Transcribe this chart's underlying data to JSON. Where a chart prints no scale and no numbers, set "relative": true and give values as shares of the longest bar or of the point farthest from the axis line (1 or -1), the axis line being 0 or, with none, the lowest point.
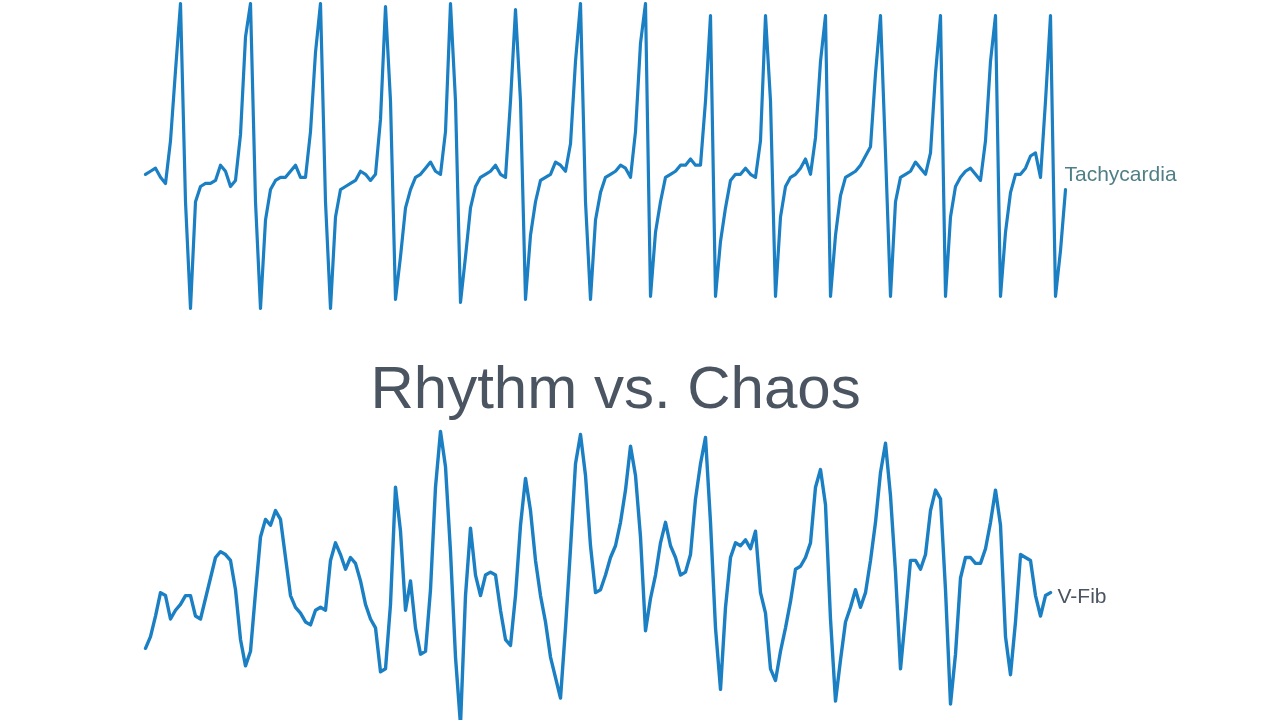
{
  "chart_data": [
    {
      "type": "line",
      "relative": true,
      "tick_labels": false,
      "line_style": "solid",
      "categories": [
        null,
        null,
        null,
        null,
        null,
        null,
        null,
        null,
        null,
        null,
        null,
        null,
        null,
        null,
        null,
        null,
        null,
        null,
        null,
        null,
        null,
        null,
        null,
        null,
        null,
        null,
        null,
        null,
        null,
        null,
        null,
        null,
        null,
        null,
        null,
        null,
        null,
        null,
        null,
        null,
        null,
        null,
        null,
        null,
        null,
        null,
        null,
        null,
        null,
        null,
        null,
        null,
        null,
        null,
        null,
        null,
        null,
        null,
        null,
        null,
        null,
        null,
        null,
        null,
        null,
        null,
        null,
        null,
        null,
        null,
        null,
        null,
        null,
        null,
        null,
        null,
        null,
        null,
        null,
        null,
        null,
        null,
        null,
        null,
        null,
        null,
        null,
        null,
        null,
        null,
        null,
        null,
        null,
        null,
        null,
        null,
        null,
        null,
        null,
        null,
        null,
        null,
        null,
        null,
        null,
        null,
        null,
        null,
        null,
        null,
        null,
        null,
        null,
        null,
        null,
        null,
        null,
        null,
        null,
        null,
        null,
        null,
        null,
        null,
        null,
        null,
        null,
        null,
        null,
        null,
        null,
        null,
        null,
        null,
        null,
        null,
        null,
        null,
        null,
        null,
        null,
        null,
        null,
        null,
        null,
        null,
        null,
        null,
        null,
        null,
        null,
        null,
        null,
        null,
        null,
        null,
        null,
        null,
        null,
        null,
        null,
        null,
        null,
        null,
        null,
        null,
        null,
        null,
        null,
        null,
        null,
        null,
        null,
        null,
        null,
        null,
        null,
        null,
        null,
        null,
        null,
        null,
        null,
        null,
        null
      ],
      "series": [
        {
          "name": "Tachycardia",
          "color": "#1b7fc4",
          "values": [
            0.44,
            0.45,
            0.46,
            0.43,
            0.41,
            0.55,
            0.78,
            1.0,
            0.35,
            0.0,
            0.35,
            0.4,
            0.41,
            0.41,
            0.42,
            0.47,
            0.45,
            0.4,
            0.42,
            0.57,
            0.89,
            1.0,
            0.35,
            0.0,
            0.29,
            0.39,
            0.42,
            0.43,
            0.43,
            0.45,
            0.47,
            0.43,
            0.43,
            0.58,
            0.84,
            1.0,
            0.35,
            0.0,
            0.3,
            0.39,
            0.4,
            0.41,
            0.42,
            0.45,
            0.44,
            0.42,
            0.44,
            0.62,
            0.99,
            0.68,
            0.03,
            0.17,
            0.33,
            0.39,
            0.43,
            0.44,
            0.46,
            0.48,
            0.45,
            0.44,
            0.58,
            1.0,
            0.68,
            0.02,
            0.17,
            0.33,
            0.4,
            0.43,
            0.44,
            0.45,
            0.47,
            0.44,
            0.43,
            0.68,
            0.98,
            0.68,
            0.03,
            0.24,
            0.35,
            0.42,
            0.43,
            0.44,
            0.48,
            0.47,
            0.45,
            0.54,
            0.81,
            1.0,
            0.35,
            0.03,
            0.29,
            0.38,
            0.43,
            0.44,
            0.45,
            0.47,
            0.46,
            0.43,
            0.58,
            0.87,
            1.0,
            0.04,
            0.25,
            0.35,
            0.43,
            0.44,
            0.45,
            0.47,
            0.47,
            0.49,
            0.47,
            0.47,
            0.68,
            0.96,
            0.04,
            0.22,
            0.33,
            0.42,
            0.44,
            0.44,
            0.46,
            0.44,
            0.43,
            0.55,
            0.96,
            0.68,
            0.04,
            0.3,
            0.4,
            0.43,
            0.44,
            0.46,
            0.49,
            0.44,
            0.56,
            0.81,
            0.96,
            0.04,
            0.24,
            0.37,
            0.43,
            0.44,
            0.45,
            0.47,
            0.5,
            0.53,
            0.77,
            0.96,
            0.51,
            0.04,
            0.35,
            0.43,
            0.44,
            0.45,
            0.48,
            0.46,
            0.44,
            0.51,
            0.77,
            0.96,
            0.04,
            0.3,
            0.4,
            0.43,
            0.45,
            0.46,
            0.44,
            0.42,
            0.55,
            0.81,
            0.96,
            0.04,
            0.25,
            0.38,
            0.44,
            0.44,
            0.46,
            0.5,
            0.51,
            0.43,
            0.68,
            0.96,
            0.04,
            0.19,
            0.39
          ]
        }
      ]
    },
    {
      "type": "line",
      "relative": true,
      "tick_labels": false,
      "line_style": "solid",
      "title": "Rhythm vs. Chaos",
      "categories": [
        null,
        null,
        null,
        null,
        null,
        null,
        null,
        null,
        null,
        null,
        null,
        null,
        null,
        null,
        null,
        null,
        null,
        null,
        null,
        null,
        null,
        null,
        null,
        null,
        null,
        null,
        null,
        null,
        null,
        null,
        null,
        null,
        null,
        null,
        null,
        null,
        null,
        null,
        null,
        null,
        null,
        null,
        null,
        null,
        null,
        null,
        null,
        null,
        null,
        null,
        null,
        null,
        null,
        null,
        null,
        null,
        null,
        null,
        null,
        null,
        null,
        null,
        null,
        null,
        null,
        null,
        null,
        null,
        null,
        null,
        null,
        null,
        null,
        null,
        null,
        null,
        null,
        null,
        null,
        null,
        null,
        null,
        null,
        null,
        null,
        null,
        null,
        null,
        null,
        null,
        null,
        null,
        null,
        null,
        null,
        null,
        null,
        null,
        null,
        null,
        null,
        null,
        null,
        null,
        null,
        null,
        null,
        null,
        null,
        null,
        null,
        null,
        null,
        null,
        null,
        null,
        null,
        null,
        null,
        null,
        null,
        null,
        null,
        null,
        null,
        null,
        null,
        null,
        null,
        null,
        null,
        null,
        null,
        null,
        null,
        null,
        null,
        null,
        null,
        null,
        null,
        null,
        null,
        null,
        null,
        null,
        null,
        null,
        null,
        null,
        null,
        null,
        null,
        null,
        null,
        null,
        null,
        null,
        null,
        null,
        null,
        null,
        null,
        null,
        null,
        null,
        null,
        null,
        null,
        null,
        null,
        null,
        null,
        null,
        null,
        null,
        null,
        null,
        null,
        null,
        null,
        null
      ],
      "series": [
        {
          "name": "V-Fib",
          "color": "#1b7fc4",
          "values": [
            0.26,
            0.3,
            0.37,
            0.45,
            0.44,
            0.36,
            0.39,
            0.41,
            0.44,
            0.44,
            0.37,
            0.36,
            0.43,
            0.5,
            0.57,
            0.59,
            0.58,
            0.56,
            0.46,
            0.29,
            0.2,
            0.25,
            0.45,
            0.64,
            0.7,
            0.68,
            0.73,
            0.7,
            0.57,
            0.44,
            0.4,
            0.38,
            0.35,
            0.34,
            0.39,
            0.4,
            0.39,
            0.56,
            0.62,
            0.58,
            0.53,
            0.57,
            0.55,
            0.49,
            0.41,
            0.36,
            0.33,
            0.18,
            0.19,
            0.41,
            0.81,
            0.66,
            0.39,
            0.49,
            0.33,
            0.24,
            0.25,
            0.46,
            0.81,
            1.0,
            0.88,
            0.59,
            0.23,
            0.0,
            0.44,
            0.67,
            0.51,
            0.44,
            0.51,
            0.52,
            0.51,
            0.39,
            0.29,
            0.27,
            0.44,
            0.68,
            0.84,
            0.73,
            0.56,
            0.44,
            0.35,
            0.23,
            0.16,
            0.09,
            0.33,
            0.6,
            0.89,
            0.99,
            0.85,
            0.61,
            0.45,
            0.46,
            0.51,
            0.57,
            0.61,
            0.69,
            0.8,
            0.95,
            0.85,
            0.64,
            0.32,
            0.43,
            0.51,
            0.62,
            0.69,
            0.61,
            0.57,
            0.51,
            0.52,
            0.58,
            0.77,
            0.89,
            0.98,
            0.69,
            0.33,
            0.12,
            0.4,
            0.57,
            0.62,
            0.61,
            0.63,
            0.6,
            0.66,
            0.45,
            0.38,
            0.19,
            0.15,
            0.25,
            0.33,
            0.42,
            0.53,
            0.54,
            0.57,
            0.62,
            0.81,
            0.87,
            0.75,
            0.36,
            0.08,
            0.22,
            0.35,
            0.4,
            0.46,
            0.4,
            0.45,
            0.56,
            0.69,
            0.86,
            0.96,
            0.78,
            0.52,
            0.19,
            0.37,
            0.56,
            0.56,
            0.53,
            0.58,
            0.73,
            0.8,
            0.77,
            0.46,
            0.07,
            0.24,
            0.5,
            0.57,
            0.57,
            0.55,
            0.55,
            0.6,
            0.69,
            0.8,
            0.68,
            0.3,
            0.17,
            0.35,
            0.58,
            0.57,
            0.56,
            0.44,
            0.37,
            0.44,
            0.45
          ]
        }
      ]
    }
  ]
}
